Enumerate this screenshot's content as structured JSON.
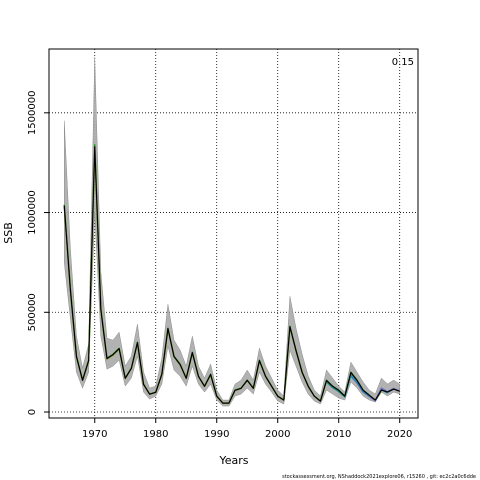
{
  "chart_data": {
    "type": "line",
    "title": "",
    "corner_label": "0.15",
    "xlabel": "Years",
    "ylabel": "SSB",
    "xlim": [
      1962.5,
      2023
    ],
    "ylim": [
      -30000,
      1820000
    ],
    "xticks": [
      1970,
      1980,
      1990,
      2000,
      2010,
      2020
    ],
    "yticks": [
      0,
      500000,
      1000000,
      1500000
    ],
    "grid": "dotted",
    "footnote": "stockassessment.org, NShaddock2021explore06, r15260 , git: ec2c2a0c6dde",
    "colors": {
      "band": "#aaaaaa",
      "band_edge": "#8c8c8c",
      "retro_1": "#2ca02c",
      "retro_2": "#8a9a2a",
      "retro_3": "#1f8f8f",
      "retro_4": "#3a7fc0",
      "retro_5": "#7070c0",
      "base": "#000000"
    },
    "band": {
      "x": [
        1965,
        1966,
        1967,
        1968,
        1969,
        1970,
        1971,
        1972,
        1973,
        1974,
        1975,
        1976,
        1977,
        1978,
        1979,
        1980,
        1981,
        1982,
        1983,
        1984,
        1985,
        1986,
        1987,
        1988,
        1989,
        1990,
        1991,
        1992,
        1993,
        1994,
        1995,
        1996,
        1997,
        1998,
        1999,
        2000,
        2001,
        2002,
        2003,
        2004,
        2005,
        2006,
        2007,
        2008,
        2009,
        2010,
        2011,
        2012,
        2013,
        2014,
        2015,
        2016,
        2017,
        2018,
        2019,
        2020
      ],
      "lower": [
        750000,
        470000,
        200000,
        120000,
        200000,
        1000000,
        380000,
        215000,
        230000,
        260000,
        130000,
        170000,
        280000,
        100000,
        65000,
        80000,
        140000,
        330000,
        210000,
        180000,
        130000,
        230000,
        140000,
        100000,
        140000,
        60000,
        30000,
        30000,
        80000,
        90000,
        120000,
        90000,
        200000,
        140000,
        100000,
        55000,
        40000,
        310000,
        230000,
        150000,
        90000,
        55000,
        40000,
        110000,
        90000,
        70000,
        60000,
        150000,
        120000,
        80000,
        60000,
        50000,
        100000,
        80000,
        100000,
        90000
      ],
      "upper": [
        1460000,
        820000,
        380000,
        220000,
        340000,
        1780000,
        700000,
        370000,
        360000,
        400000,
        230000,
        280000,
        440000,
        200000,
        120000,
        130000,
        270000,
        540000,
        360000,
        310000,
        230000,
        380000,
        230000,
        170000,
        240000,
        110000,
        60000,
        60000,
        140000,
        160000,
        210000,
        160000,
        320000,
        230000,
        170000,
        110000,
        80000,
        580000,
        420000,
        290000,
        180000,
        110000,
        80000,
        210000,
        170000,
        130000,
        100000,
        250000,
        200000,
        150000,
        110000,
        90000,
        170000,
        140000,
        160000,
        140000
      ]
    },
    "series": [
      {
        "x": [
          1965,
          1966,
          1967,
          1968,
          1969,
          1970,
          1971,
          1972,
          1973,
          1974,
          1975,
          1976,
          1977,
          1978,
          1979,
          1980,
          1981,
          1982,
          1983,
          1984,
          1985,
          1986,
          1987,
          1988,
          1989,
          1990,
          1991,
          1992,
          1993,
          1994,
          1995,
          1996,
          1997,
          1998,
          1999,
          2000,
          2001,
          2002,
          2003,
          2004,
          2005,
          2006,
          2007,
          2008,
          2009,
          2010,
          2011,
          2012,
          2013,
          2014,
          2015,
          2016
        ],
        "values": [
          1040000,
          620000,
          280000,
          160000,
          260000,
          1340000,
          520000,
          270000,
          290000,
          320000,
          170000,
          220000,
          350000,
          140000,
          90000,
          100000,
          190000,
          420000,
          280000,
          240000,
          170000,
          300000,
          180000,
          130000,
          190000,
          80000,
          45000,
          45000,
          110000,
          120000,
          160000,
          120000,
          260000,
          180000,
          130000,
          80000,
          60000,
          430000,
          310000,
          200000,
          130000,
          80000,
          55000,
          160000,
          130000,
          110000,
          80000,
          200000,
          160000,
          110000,
          85000,
          60000
        ]
      },
      {
        "x": [
          1965,
          1966,
          1967,
          1968,
          1969,
          1970,
          1971,
          1972,
          1973,
          1974,
          1975,
          1976,
          1977,
          1978,
          1979,
          1980,
          1981,
          1982,
          1983,
          1984,
          1985,
          1986,
          1987,
          1988,
          1989,
          1990,
          1991,
          1992,
          1993,
          1994,
          1995,
          1996,
          1997,
          1998,
          1999,
          2000,
          2001,
          2002,
          2003,
          2004,
          2005,
          2006,
          2007,
          2008,
          2009,
          2010,
          2011,
          2012,
          2013,
          2014,
          2015,
          2016,
          2017
        ],
        "values": [
          1030000,
          610000,
          275000,
          158000,
          255000,
          1320000,
          510000,
          265000,
          285000,
          315000,
          168000,
          218000,
          345000,
          138000,
          89000,
          98000,
          188000,
          415000,
          276000,
          236000,
          168000,
          296000,
          178000,
          128000,
          186000,
          79000,
          44000,
          44000,
          108000,
          118000,
          158000,
          118000,
          255000,
          178000,
          128000,
          79000,
          59000,
          425000,
          305000,
          198000,
          128000,
          79000,
          54000,
          155000,
          128000,
          108000,
          79000,
          195000,
          158000,
          108000,
          84000,
          60000,
          105000
        ]
      },
      {
        "x": [
          2008,
          2009,
          2010,
          2011,
          2012,
          2013,
          2014,
          2015,
          2016,
          2017,
          2018
        ],
        "values": [
          150000,
          122000,
          102000,
          76000,
          185000,
          150000,
          104000,
          80000,
          57000,
          112000,
          95000
        ]
      },
      {
        "x": [
          2012,
          2013,
          2014,
          2015,
          2016,
          2017,
          2018,
          2019
        ],
        "values": [
          180000,
          145000,
          100000,
          78000,
          56000,
          118000,
          100000,
          115000
        ]
      },
      {
        "x": [
          2015,
          2016,
          2017,
          2018,
          2019,
          2020
        ],
        "values": [
          78000,
          56000,
          120000,
          102000,
          118000,
          106000
        ]
      },
      {
        "x": [
          1965,
          1966,
          1967,
          1968,
          1969,
          1970,
          1971,
          1972,
          1973,
          1974,
          1975,
          1976,
          1977,
          1978,
          1979,
          1980,
          1981,
          1982,
          1983,
          1984,
          1985,
          1986,
          1987,
          1988,
          1989,
          1990,
          1991,
          1992,
          1993,
          1994,
          1995,
          1996,
          1997,
          1998,
          1999,
          2000,
          2001,
          2002,
          2003,
          2004,
          2005,
          2006,
          2007,
          2008,
          2009,
          2010,
          2011,
          2012,
          2013,
          2014,
          2015,
          2016,
          2017,
          2018,
          2019,
          2020
        ],
        "values": [
          1035000,
          615000,
          278000,
          159000,
          258000,
          1330000,
          515000,
          268000,
          288000,
          318000,
          169000,
          219000,
          348000,
          139000,
          89500,
          99000,
          189000,
          418000,
          278000,
          238000,
          169000,
          298000,
          179000,
          129000,
          188000,
          79500,
          44500,
          44500,
          109000,
          119000,
          159000,
          119000,
          258000,
          179000,
          129000,
          79500,
          59500,
          428000,
          308000,
          199000,
          129000,
          79500,
          54500,
          158000,
          129000,
          109000,
          79500,
          198000,
          159000,
          109000,
          84500,
          60000,
          110000,
          100000,
          115000,
          104000
        ]
      }
    ]
  }
}
